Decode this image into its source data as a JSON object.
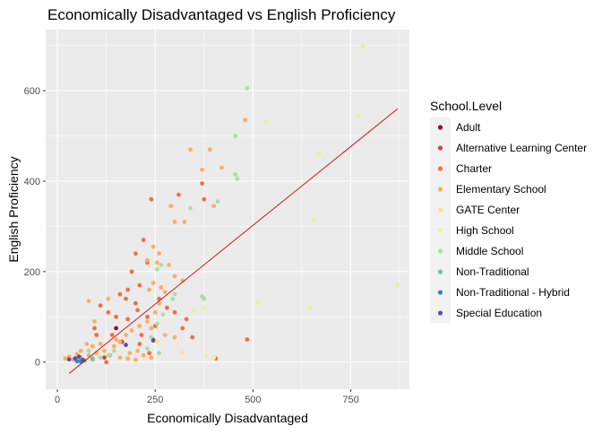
{
  "chart_data": {
    "type": "scatter",
    "title": "Economically Disadvantaged vs English Proficiency",
    "xlabel": "Economically Disadvantaged",
    "ylabel": "English Proficiency",
    "xlim": [
      -30,
      900
    ],
    "ylim": [
      -60,
      735
    ],
    "x_ticks": [
      0,
      250,
      500,
      750
    ],
    "y_ticks": [
      0,
      200,
      400,
      600
    ],
    "grid": true,
    "legend": {
      "title": "School.Level",
      "placement": "right"
    },
    "series": [
      {
        "name": "Adult",
        "color": "#9e0142",
        "points": [
          [
            150,
            75
          ]
        ]
      },
      {
        "name": "Alternative Learning Center",
        "color": "#d53e4f",
        "points": [
          [
            165,
            45
          ],
          [
            120,
            10
          ]
        ]
      },
      {
        "name": "Charter",
        "color": "#f46d43",
        "points": [
          [
            240,
            360
          ],
          [
            310,
            370
          ],
          [
            370,
            395
          ],
          [
            375,
            360
          ],
          [
            220,
            270
          ],
          [
            200,
            240
          ],
          [
            230,
            220
          ],
          [
            190,
            200
          ],
          [
            210,
            170
          ],
          [
            180,
            160
          ],
          [
            160,
            150
          ],
          [
            110,
            125
          ],
          [
            130,
            110
          ],
          [
            150,
            100
          ],
          [
            175,
            140
          ],
          [
            200,
            130
          ],
          [
            230,
            100
          ],
          [
            250,
            80
          ],
          [
            260,
            140
          ],
          [
            280,
            120
          ],
          [
            300,
            110
          ],
          [
            320,
            75
          ],
          [
            345,
            55
          ],
          [
            485,
            50
          ],
          [
            405,
            8
          ],
          [
            140,
            60
          ],
          [
            100,
            60
          ],
          [
            95,
            75
          ],
          [
            180,
            95
          ],
          [
            210,
            40
          ],
          [
            245,
            50
          ],
          [
            235,
            20
          ],
          [
            125,
            0
          ],
          [
            205,
            115
          ],
          [
            330,
            95
          ],
          [
            215,
            60
          ]
        ]
      },
      {
        "name": "Elementary School",
        "color": "#fdae61",
        "points": [
          [
            340,
            470
          ],
          [
            390,
            470
          ],
          [
            370,
            425
          ],
          [
            420,
            430
          ],
          [
            480,
            535
          ],
          [
            300,
            310
          ],
          [
            325,
            310
          ],
          [
            290,
            345
          ],
          [
            400,
            345
          ],
          [
            260,
            240
          ],
          [
            245,
            255
          ],
          [
            230,
            225
          ],
          [
            255,
            220
          ],
          [
            285,
            215
          ],
          [
            300,
            190
          ],
          [
            320,
            180
          ],
          [
            245,
            175
          ],
          [
            265,
            165
          ],
          [
            275,
            155
          ],
          [
            235,
            160
          ],
          [
            260,
            130
          ],
          [
            250,
            110
          ],
          [
            230,
            90
          ],
          [
            210,
            80
          ],
          [
            240,
            75
          ],
          [
            275,
            60
          ],
          [
            300,
            55
          ],
          [
            190,
            70
          ],
          [
            175,
            60
          ],
          [
            160,
            45
          ],
          [
            145,
            35
          ],
          [
            120,
            25
          ],
          [
            100,
            20
          ],
          [
            80,
            15
          ],
          [
            60,
            10
          ],
          [
            40,
            5
          ],
          [
            30,
            12
          ],
          [
            20,
            8
          ],
          [
            90,
            35
          ],
          [
            110,
            40
          ],
          [
            135,
            15
          ],
          [
            160,
            10
          ],
          [
            185,
            20
          ],
          [
            200,
            5
          ],
          [
            220,
            15
          ],
          [
            240,
            10
          ],
          [
            80,
            135
          ],
          [
            130,
            140
          ],
          [
            95,
            90
          ],
          [
            75,
            40
          ],
          [
            90,
            5
          ],
          [
            60,
            25
          ],
          [
            50,
            18
          ],
          [
            180,
            8
          ],
          [
            205,
            25
          ],
          [
            150,
            50
          ]
        ]
      },
      {
        "name": "GATE Center",
        "color": "#fee08b",
        "points": [
          [
            320,
            20
          ],
          [
            255,
            45
          ]
        ]
      },
      {
        "name": "High School",
        "color": "#e6f598",
        "points": [
          [
            780,
            698
          ],
          [
            770,
            545
          ],
          [
            535,
            532
          ],
          [
            670,
            460
          ],
          [
            655,
            315
          ],
          [
            870,
            170
          ],
          [
            510,
            130
          ],
          [
            645,
            120
          ],
          [
            380,
            15
          ],
          [
            400,
            10
          ],
          [
            375,
            120
          ],
          [
            350,
            115
          ]
        ]
      },
      {
        "name": "Middle School",
        "color": "#abdda4",
        "points": [
          [
            485,
            605
          ],
          [
            455,
            500
          ],
          [
            455,
            415
          ],
          [
            460,
            405
          ],
          [
            410,
            355
          ],
          [
            340,
            340
          ],
          [
            370,
            145
          ],
          [
            375,
            140
          ],
          [
            300,
            150
          ],
          [
            295,
            140
          ],
          [
            265,
            215
          ],
          [
            255,
            205
          ],
          [
            270,
            105
          ],
          [
            255,
            85
          ],
          [
            240,
            55
          ],
          [
            260,
            20
          ],
          [
            230,
            30
          ],
          [
            145,
            25
          ],
          [
            130,
            15
          ],
          [
            110,
            10
          ],
          [
            80,
            25
          ]
        ]
      },
      {
        "name": "Non-Traditional",
        "color": "#66c2a5",
        "points": [
          [
            70,
            3
          ],
          [
            90,
            8
          ],
          [
            58,
            6
          ]
        ]
      },
      {
        "name": "Non-Traditional - Hybrid",
        "color": "#3288bd",
        "points": [
          [
            50,
            2
          ],
          [
            60,
            1
          ]
        ]
      },
      {
        "name": "Special Education",
        "color": "#5e4fa2",
        "points": [
          [
            45,
            8
          ],
          [
            65,
            5
          ],
          [
            175,
            38
          ],
          [
            245,
            48
          ],
          [
            30,
            6
          ],
          [
            55,
            12
          ]
        ]
      }
    ],
    "trend_line": {
      "color": "#cc0000",
      "from": [
        30,
        -25
      ],
      "to": [
        870,
        560
      ]
    }
  }
}
